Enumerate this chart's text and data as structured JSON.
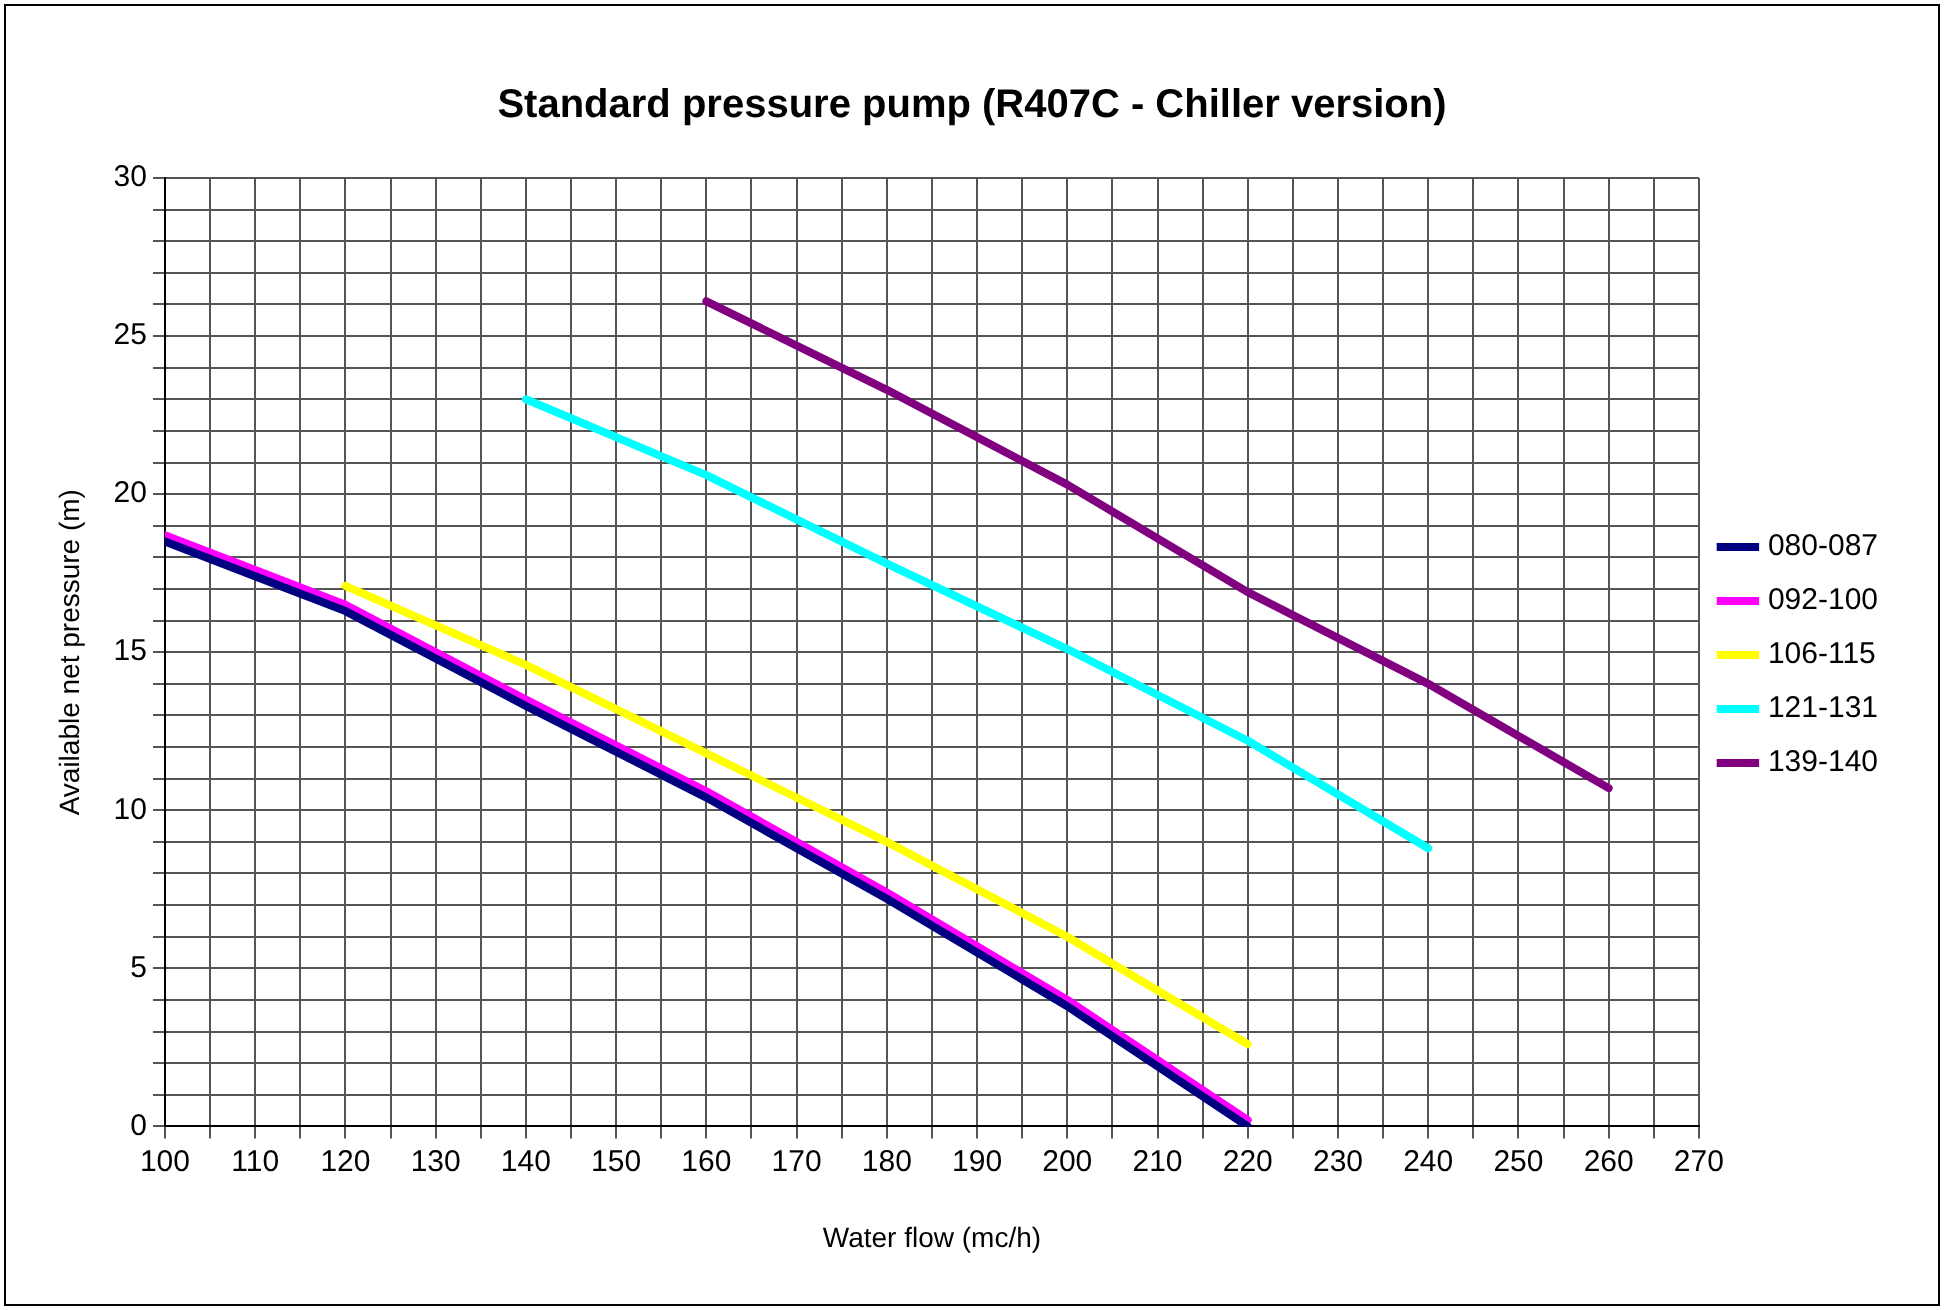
{
  "chart_data": {
    "type": "line",
    "title": "Standard pressure pump (R407C - Chiller version)",
    "xlabel": "Water flow (mc/h)",
    "ylabel": "Available net pressure (m)",
    "xlim": [
      100,
      270
    ],
    "xticks": [
      100,
      {
        "value": 105,
        "label": null
      },
      110,
      {
        "value": 115,
        "label": null
      },
      120,
      {
        "value": 125,
        "label": null
      },
      130,
      {
        "value": 135,
        "label": null
      },
      140,
      {
        "value": 145,
        "label": null
      },
      150,
      {
        "value": 155,
        "label": null
      },
      160,
      {
        "value": 165,
        "label": null
      },
      170,
      {
        "value": 175,
        "label": null
      },
      180,
      {
        "value": 185,
        "label": null
      },
      190,
      {
        "value": 195,
        "label": null
      },
      200,
      {
        "value": 205,
        "label": null
      },
      210,
      {
        "value": 215,
        "label": null
      },
      220,
      {
        "value": 225,
        "label": null
      },
      230,
      {
        "value": 235,
        "label": null
      },
      240,
      {
        "value": 245,
        "label": null
      },
      250,
      {
        "value": 255,
        "label": null
      },
      260,
      {
        "value": 265,
        "label": null
      },
      270
    ],
    "ylim": [
      0,
      30
    ],
    "yticks": [
      0,
      {
        "value": 1,
        "label": null
      },
      {
        "value": 2,
        "label": null
      },
      {
        "value": 3,
        "label": null
      },
      {
        "value": 4,
        "label": null
      },
      5,
      {
        "value": 6,
        "label": null
      },
      {
        "value": 7,
        "label": null
      },
      {
        "value": 8,
        "label": null
      },
      {
        "value": 9,
        "label": null
      },
      10,
      {
        "value": 11,
        "label": null
      },
      {
        "value": 12,
        "label": null
      },
      {
        "value": 13,
        "label": null
      },
      {
        "value": 14,
        "label": null
      },
      15,
      {
        "value": 16,
        "label": null
      },
      {
        "value": 17,
        "label": null
      },
      {
        "value": 18,
        "label": null
      },
      {
        "value": 19,
        "label": null
      },
      20,
      {
        "value": 21,
        "label": null
      },
      {
        "value": 22,
        "label": null
      },
      {
        "value": 23,
        "label": null
      },
      {
        "value": 24,
        "label": null
      },
      25,
      {
        "value": 26,
        "label": null
      },
      {
        "value": 27,
        "label": null
      },
      {
        "value": 28,
        "label": null
      },
      {
        "value": 29,
        "label": null
      },
      30
    ],
    "grid": true,
    "legend": "right",
    "marker": "none",
    "line_style": "solid",
    "series": [
      {
        "name": "080-087",
        "color": "#000080",
        "x": [
          100,
          120,
          140,
          160,
          180,
          200,
          220
        ],
        "values": [
          18.5,
          16.3,
          13.3,
          10.4,
          7.2,
          3.8,
          0
        ]
      },
      {
        "name": "092-100",
        "color": "#ff00ff",
        "x": [
          100,
          120,
          140,
          160,
          180,
          200,
          220
        ],
        "values": [
          18.7,
          16.5,
          13.5,
          10.6,
          7.4,
          4.0,
          0.2
        ]
      },
      {
        "name": "106-115",
        "color": "#ffff00",
        "x": [
          120,
          140,
          160,
          180,
          200,
          220
        ],
        "values": [
          17.1,
          14.6,
          11.8,
          9.0,
          6.0,
          2.6
        ]
      },
      {
        "name": "121-131",
        "color": "#00ffff",
        "x": [
          140,
          160,
          180,
          200,
          220,
          240
        ],
        "values": [
          23.0,
          20.6,
          17.8,
          15.1,
          12.2,
          8.8
        ]
      },
      {
        "name": "139-140",
        "color": "#800080",
        "x": [
          160,
          180,
          200,
          220,
          240,
          260
        ],
        "values": [
          26.1,
          23.3,
          20.3,
          16.9,
          14.0,
          10.7
        ]
      }
    ]
  }
}
